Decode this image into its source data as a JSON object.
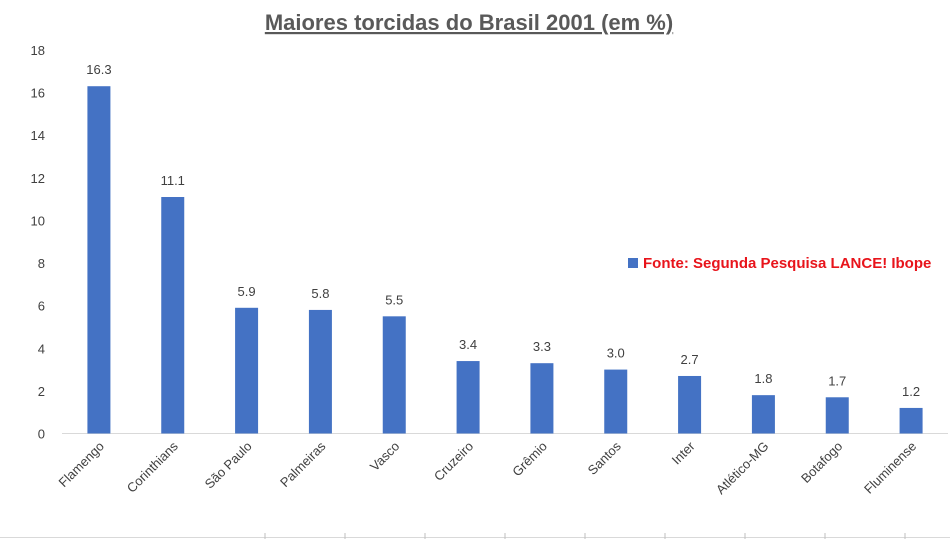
{
  "chart_data": {
    "type": "bar",
    "title": "Maiores torcidas do Brasil 2001 (em %)",
    "categories": [
      "Flamengo",
      "Corinthians",
      "São Paulo",
      "Palmeiras",
      "Vasco",
      "Cruzeiro",
      "Grêmio",
      "Santos",
      "Inter",
      "Atlético-MG",
      "Botafogo",
      "Fluminense"
    ],
    "values": [
      16.3,
      11.1,
      5.9,
      5.8,
      5.5,
      3.4,
      3.3,
      3.0,
      2.7,
      1.8,
      1.7,
      1.2
    ],
    "value_labels": [
      "16.3",
      "11.1",
      "5.9",
      "5.8",
      "5.5",
      "3.4",
      "3.3",
      "3.0",
      "2.7",
      "1.8",
      "1.7",
      "1.2"
    ],
    "ylim": [
      0,
      18
    ],
    "yticks": [
      "0",
      "2",
      "4",
      "6",
      "8",
      "10",
      "12",
      "14",
      "16",
      "18"
    ],
    "grid": false,
    "legend": {
      "position": "right",
      "entries": [
        {
          "name": "Fonte: Segunda Pesquisa LANCE! Ibope",
          "color": "#4472c4"
        }
      ]
    },
    "bar_color": "#4472c4",
    "legend_text_color": "#e8141b"
  }
}
